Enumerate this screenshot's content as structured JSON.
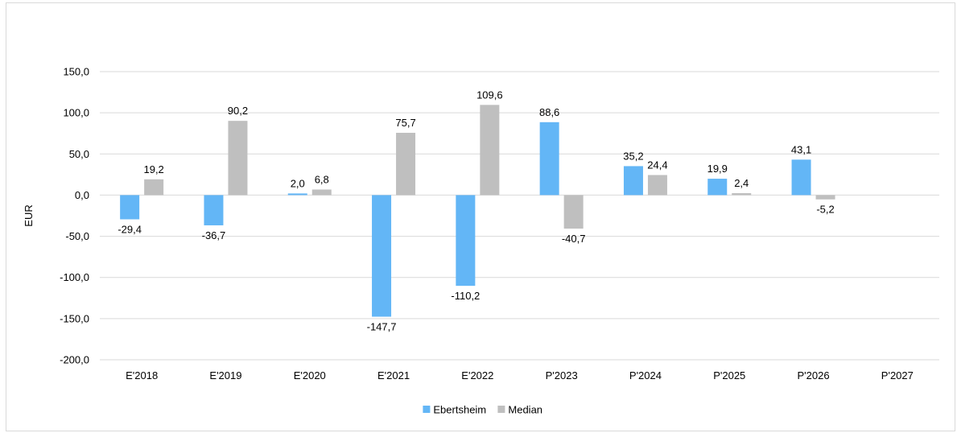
{
  "chart_data": {
    "type": "bar",
    "categories": [
      "E'2018",
      "E'2019",
      "E'2020",
      "E'2021",
      "E'2022",
      "P'2023",
      "P'2024",
      "P'2025",
      "P'2026",
      "P'2027"
    ],
    "series": [
      {
        "name": "Ebertsheim",
        "values": [
          -29.4,
          -36.7,
          2.0,
          -147.7,
          -110.2,
          88.6,
          35.2,
          19.9,
          43.1,
          null
        ],
        "labels": [
          "-29,4",
          "-36,7",
          "2,0",
          "-147,7",
          "-110,2",
          "88,6",
          "35,2",
          "19,9",
          "43,1",
          ""
        ],
        "color": "#63b6f6"
      },
      {
        "name": "Median",
        "values": [
          19.2,
          90.2,
          6.8,
          75.7,
          109.6,
          -40.7,
          24.4,
          2.4,
          -5.2,
          null
        ],
        "labels": [
          "19,2",
          "90,2",
          "6,8",
          "75,7",
          "109,6",
          "-40,7",
          "24,4",
          "2,4",
          "-5,2",
          ""
        ],
        "color": "#bfbfbf"
      }
    ],
    "ylabel": "EUR",
    "ylim": [
      -200,
      150
    ],
    "yticks": [
      150,
      100,
      50,
      0,
      -50,
      -100,
      -150,
      -200
    ],
    "ytick_labels": [
      "150,0",
      "100,0",
      "50,0",
      "0,0",
      "-50,0",
      "-100,0",
      "-150,0",
      "-200,0"
    ],
    "grid": true,
    "legend_position": "bottom"
  }
}
